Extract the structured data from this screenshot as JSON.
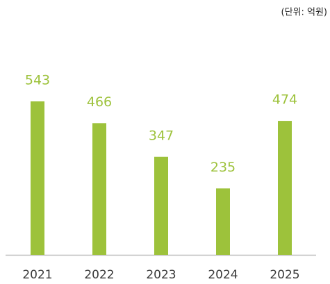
{
  "chart_data": {
    "type": "bar",
    "unit_note": "(단위: 억원)",
    "categories": [
      "2021",
      "2022",
      "2023",
      "2024",
      "2025"
    ],
    "values": [
      543,
      466,
      347,
      235,
      474
    ],
    "color": "#9dc23b"
  }
}
